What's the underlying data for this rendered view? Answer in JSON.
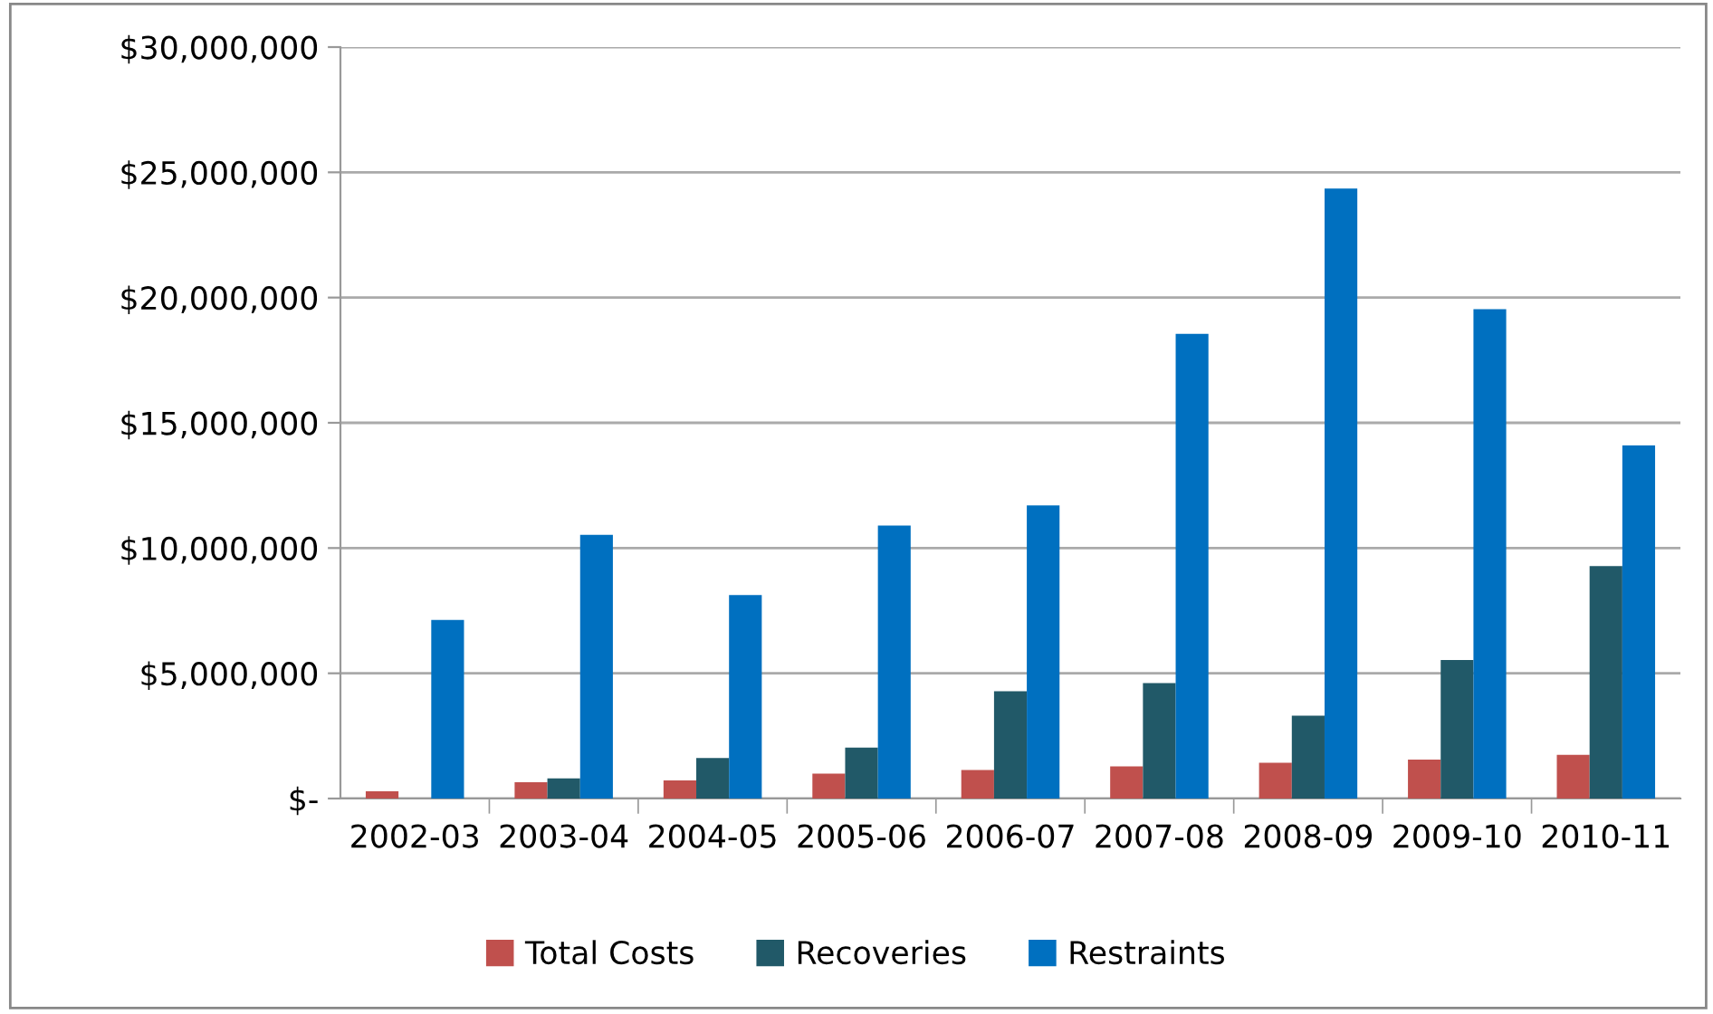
{
  "chart_data": {
    "type": "bar",
    "categories": [
      "2002-03",
      "2003-04",
      "2004-05",
      "2005-06",
      "2006-07",
      "2007-08",
      "2008-09",
      "2009-10",
      "2010-11"
    ],
    "series": [
      {
        "name": "Total Costs",
        "color": "#c0504d",
        "values": [
          290000,
          650000,
          720000,
          990000,
          1140000,
          1280000,
          1430000,
          1550000,
          1740000
        ]
      },
      {
        "name": "Recoveries",
        "color": "#215968",
        "values": [
          0,
          800000,
          1620000,
          2030000,
          4280000,
          4610000,
          3310000,
          5530000,
          9280000
        ]
      },
      {
        "name": "Restraints",
        "color": "#0070c0",
        "values": [
          7130000,
          10530000,
          8120000,
          10900000,
          11700000,
          18550000,
          24350000,
          19540000,
          14100000
        ]
      }
    ],
    "ylim": [
      0,
      30000000
    ],
    "yticks": [
      {
        "value": 0,
        "label": "$-"
      },
      {
        "value": 5000000,
        "label": "$5,000,000"
      },
      {
        "value": 10000000,
        "label": "$10,000,000"
      },
      {
        "value": 15000000,
        "label": "$15,000,000"
      },
      {
        "value": 20000000,
        "label": "$20,000,000"
      },
      {
        "value": 25000000,
        "label": "$25,000,000"
      },
      {
        "value": 30000000,
        "label": "$30,000,000"
      }
    ],
    "grid": "y",
    "legend": "bottom"
  }
}
